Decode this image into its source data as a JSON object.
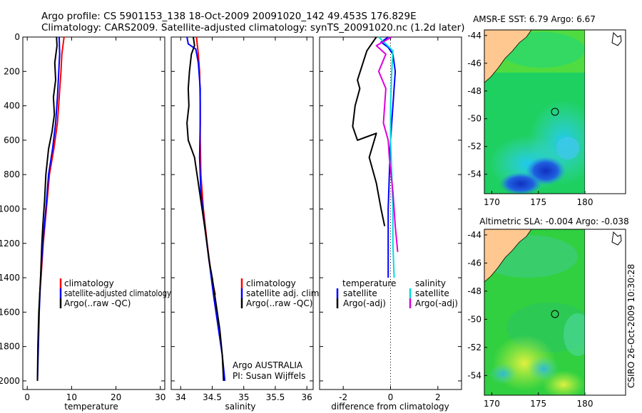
{
  "header": {
    "line1": "Argo profile: CS 5901153_138 18-Oct-2009 20091020_142 49.453S 176.829E",
    "line2": "Climatology: CARS2009. Satellite-adjusted climatology: synTS_20091020.nc (1.2d later)"
  },
  "footer_vertical": "CSIRO 26-Oct-2009 10:30:28",
  "chart_data": [
    {
      "id": "temperature",
      "type": "line",
      "xlabel": "temperature",
      "ylabel": "",
      "xlim": [
        -1,
        31
      ],
      "ylim": [
        2050,
        0
      ],
      "y_reversed": true,
      "xticks": [
        0,
        10,
        20,
        30
      ],
      "yticks": [
        0,
        200,
        400,
        600,
        800,
        1000,
        1200,
        1400,
        1600,
        1800,
        2000
      ],
      "legend": {
        "placement": "lower-right",
        "entries": [
          "climatology",
          "satellite-adjusted climatology",
          "Argo(..raw -QC)"
        ]
      },
      "series": [
        {
          "name": "climatology",
          "color": "#ff0000",
          "points": [
            [
              8.3,
              0
            ],
            [
              7.8,
              100
            ],
            [
              7.6,
              200
            ],
            [
              7.2,
              350
            ],
            [
              6.8,
              500
            ],
            [
              6.0,
              650
            ],
            [
              5.0,
              800
            ],
            [
              4.3,
              1000
            ],
            [
              3.6,
              1200
            ],
            [
              3.1,
              1400
            ],
            [
              2.8,
              1500
            ]
          ]
        },
        {
          "name": "satellite-adjusted climatology",
          "color": "#0000ff",
          "points": [
            [
              7.2,
              0
            ],
            [
              7.3,
              100
            ],
            [
              7.1,
              200
            ],
            [
              6.8,
              350
            ],
            [
              6.4,
              500
            ],
            [
              5.7,
              650
            ],
            [
              4.8,
              800
            ],
            [
              4.2,
              1000
            ],
            [
              3.5,
              1200
            ],
            [
              3.0,
              1400
            ],
            [
              2.7,
              1600
            ],
            [
              2.5,
              1800
            ],
            [
              2.3,
              2000
            ]
          ]
        },
        {
          "name": "Argo(..raw -QC)",
          "color": "#000000",
          "points": [
            [
              6.6,
              0
            ],
            [
              6.7,
              50
            ],
            [
              6.2,
              150
            ],
            [
              6.4,
              250
            ],
            [
              5.9,
              350
            ],
            [
              6.1,
              450
            ],
            [
              5.6,
              550
            ],
            [
              4.8,
              650
            ],
            [
              4.2,
              800
            ],
            [
              3.9,
              950
            ],
            [
              3.5,
              1100
            ],
            [
              3.3,
              1200
            ],
            [
              3.0,
              1400
            ],
            [
              2.6,
              1600
            ],
            [
              2.4,
              1800
            ],
            [
              2.3,
              2000
            ]
          ]
        }
      ]
    },
    {
      "id": "salinity",
      "type": "line",
      "xlabel": "salinity",
      "ylabel": "",
      "xlim": [
        33.85,
        36.1
      ],
      "ylim": [
        2050,
        0
      ],
      "y_reversed": true,
      "xticks": [
        34,
        34.5,
        35,
        35.5,
        36
      ],
      "legend": {
        "placement": "lower-right",
        "entries": [
          "climatology",
          "satellite adj. clim.",
          "Argo(..raw -QC)"
        ]
      },
      "annotations": [
        "Argo AUSTRALIA",
        "PI: Susan Wijffels"
      ],
      "series": [
        {
          "name": "climatology",
          "color": "#ff0000",
          "points": [
            [
              34.25,
              0
            ],
            [
              34.28,
              100
            ],
            [
              34.3,
              200
            ],
            [
              34.31,
              400
            ],
            [
              34.31,
              600
            ],
            [
              34.32,
              800
            ],
            [
              34.36,
              1000
            ],
            [
              34.42,
              1200
            ],
            [
              34.49,
              1400
            ],
            [
              34.55,
              1500
            ]
          ]
        },
        {
          "name": "satellite adj. clim.",
          "color": "#0000ff",
          "points": [
            [
              34.1,
              0
            ],
            [
              34.12,
              40
            ],
            [
              34.24,
              70
            ],
            [
              34.28,
              150
            ],
            [
              34.31,
              300
            ],
            [
              34.31,
              500
            ],
            [
              34.3,
              700
            ],
            [
              34.32,
              900
            ],
            [
              34.38,
              1100
            ],
            [
              34.45,
              1300
            ],
            [
              34.52,
              1500
            ],
            [
              34.6,
              1700
            ],
            [
              34.66,
              1850
            ],
            [
              34.7,
              2000
            ]
          ]
        },
        {
          "name": "Argo(..raw -QC)",
          "color": "#000000",
          "points": [
            [
              34.2,
              0
            ],
            [
              34.22,
              50
            ],
            [
              34.17,
              100
            ],
            [
              34.14,
              200
            ],
            [
              34.12,
              300
            ],
            [
              34.13,
              400
            ],
            [
              34.1,
              500
            ],
            [
              34.12,
              600
            ],
            [
              34.22,
              700
            ],
            [
              34.28,
              850
            ],
            [
              34.34,
              1000
            ],
            [
              34.4,
              1150
            ],
            [
              34.45,
              1300
            ],
            [
              34.5,
              1400
            ],
            [
              34.56,
              1550
            ],
            [
              34.62,
              1700
            ],
            [
              34.66,
              1850
            ],
            [
              34.68,
              2000
            ]
          ]
        }
      ]
    },
    {
      "id": "difference",
      "type": "line",
      "xlabel": "difference from climatology",
      "ylabel": "",
      "xlim": [
        -3,
        3
      ],
      "ylim": [
        2050,
        0
      ],
      "y_reversed": true,
      "xticks": [
        -2,
        0,
        2
      ],
      "zero_line": true,
      "legend": {
        "placement": "lower-right",
        "headers": [
          "temperature",
          "salinity"
        ],
        "entries": [
          "satellite",
          "Argo(-adj)",
          "satellite",
          "Argo(-adj)"
        ]
      },
      "series": [
        {
          "name": "satellite",
          "group": "temperature",
          "color": "#0000ff",
          "points": [
            [
              -0.1,
              0
            ],
            [
              -0.4,
              30
            ],
            [
              -0.1,
              60
            ],
            [
              0.1,
              100
            ],
            [
              0.2,
              200
            ],
            [
              0.1,
              400
            ],
            [
              0.0,
              600
            ],
            [
              -0.05,
              800
            ],
            [
              -0.1,
              1000
            ],
            [
              -0.1,
              1200
            ],
            [
              -0.1,
              1400
            ]
          ]
        },
        {
          "name": "Argo(-adj)",
          "group": "temperature",
          "color": "#000000",
          "points": [
            [
              -0.6,
              0
            ],
            [
              -1.0,
              80
            ],
            [
              -1.4,
              250
            ],
            [
              -1.3,
              300
            ],
            [
              -1.5,
              400
            ],
            [
              -1.6,
              520
            ],
            [
              -1.4,
              600
            ],
            [
              -0.6,
              560
            ],
            [
              -0.9,
              700
            ],
            [
              -0.6,
              850
            ],
            [
              -0.4,
              1000
            ],
            [
              -0.25,
              1100
            ]
          ]
        },
        {
          "name": "satellite",
          "group": "salinity",
          "color": "#00dddd",
          "points": [
            [
              -0.5,
              0
            ],
            [
              -0.2,
              40
            ],
            [
              0.1,
              80
            ],
            [
              0.05,
              200
            ],
            [
              0.0,
              400
            ],
            [
              0.0,
              600
            ],
            [
              0.05,
              800
            ],
            [
              0.1,
              1000
            ],
            [
              0.1,
              1200
            ],
            [
              0.15,
              1400
            ]
          ]
        },
        {
          "name": "Argo(-adj)",
          "group": "salinity",
          "color": "#dd00dd",
          "points": [
            [
              0.05,
              0
            ],
            [
              -0.6,
              50
            ],
            [
              -0.2,
              100
            ],
            [
              -0.5,
              200
            ],
            [
              -0.2,
              300
            ],
            [
              -0.3,
              500
            ],
            [
              -0.1,
              600
            ],
            [
              -0.05,
              700
            ],
            [
              0.1,
              900
            ],
            [
              0.2,
              1100
            ],
            [
              0.3,
              1250
            ]
          ]
        }
      ]
    }
  ],
  "maps": [
    {
      "id": "sst",
      "title": "AMSR-E SST: 6.79 Argo: 6.67",
      "xticks": [
        "170",
        "175",
        "180"
      ],
      "yticks": [
        "-44",
        "-46",
        "-48",
        "-50",
        "-52",
        "-54"
      ],
      "argo_marker": "Argo profile location"
    },
    {
      "id": "sla",
      "title": "Altimetric SLA: -0.004 Argo: -0.038",
      "xticks": [
        "170",
        "175",
        "180"
      ],
      "yticks": [
        "-44",
        "-46",
        "-48",
        "-50",
        "-52",
        "-54"
      ],
      "argo_marker": "Argo profile location"
    }
  ]
}
